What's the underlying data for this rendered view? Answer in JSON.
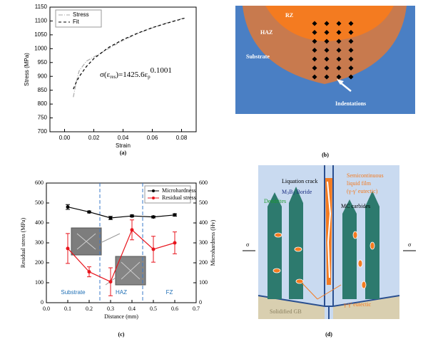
{
  "chart_data": [
    {
      "type": "line",
      "x": [
        0.006,
        0.008,
        0.01,
        0.015,
        0.02,
        0.03,
        0.04,
        0.05,
        0.06,
        0.07,
        0.08,
        0.082
      ],
      "series": [
        {
          "name": "Stress",
          "color": "#aaaaaa",
          "dash": "6 2 1 2",
          "values": [
            825,
            880,
            920,
            955,
            970,
            1000,
            1030,
            1055,
            1075,
            1093,
            1108,
            1112
          ]
        },
        {
          "name": "Fit",
          "color": "#000000",
          "dash": "4 3",
          "values": [
            854,
            879,
            899,
            936,
            964,
            1004,
            1033,
            1056,
            1076,
            1092,
            1107,
            1110
          ]
        }
      ],
      "x_label": "Strain",
      "y_label": "Stress (MPa)",
      "xlim": [
        -0.01,
        0.09
      ],
      "xticks": [
        {
          "value": 0,
          "label": "0.00"
        },
        {
          "value": 0.02,
          "label": "0.02"
        },
        {
          "value": 0.04,
          "label": "0.04"
        },
        {
          "value": 0.06,
          "label": "0.06"
        },
        {
          "value": 0.08,
          "label": "0.08"
        }
      ],
      "ylim": [
        700,
        1150
      ],
      "yticks": [
        700,
        750,
        800,
        850,
        900,
        950,
        1000,
        1050,
        1100,
        1150
      ],
      "equation": [
        "σ(ε",
        "res",
        ")=1425.6ε",
        "p",
        "0.1001"
      ],
      "legend": "upper left",
      "caption": "(a)"
    },
    {
      "type": "line",
      "x": [
        0.1,
        0.2,
        0.3,
        0.4,
        0.5,
        0.6
      ],
      "series": [
        {
          "name": "Microhardness",
          "color": "#000000",
          "axis": "y2",
          "values": [
            480,
            455,
            425,
            435,
            430,
            440
          ],
          "errors": [
            12,
            5,
            8,
            5,
            5,
            6
          ]
        },
        {
          "name": "Residual stress",
          "color": "#e8141c",
          "values": [
            272,
            155,
            105,
            365,
            268,
            300
          ],
          "errors": [
            75,
            25,
            70,
            50,
            65,
            55
          ]
        }
      ],
      "x_label": "Distance (mm)",
      "y_label": "Residual stress (MPa)",
      "y2_label": "Microhardness (Hv)",
      "xlim": [
        0,
        0.7
      ],
      "xticks": [
        {
          "value": 0,
          "label": "0.0"
        },
        0.1,
        0.2,
        0.3,
        0.4,
        0.5,
        0.6,
        0.7
      ],
      "ylim": [
        0,
        600
      ],
      "yticks": [
        0,
        100,
        200,
        300,
        400,
        500,
        600
      ],
      "y2lim": [
        0,
        600
      ],
      "y2ticks": [
        0,
        100,
        200,
        300,
        400,
        500,
        600
      ],
      "region_boundaries": [
        0.25,
        0.45
      ],
      "regions": [
        "Substrate",
        "HAZ",
        "FZ"
      ],
      "legend": "upper right",
      "caption": "(c)"
    }
  ],
  "diagram_b": {
    "labels": {
      "rz": "RZ",
      "haz": "HAZ",
      "substrate": "Substrate",
      "indentations": "Indentations"
    },
    "caption": "(b)"
  },
  "diagram_d": {
    "labels": {
      "crack": "Liquation crack",
      "boride": [
        "M",
        "3",
        "B",
        "2",
        " Boride"
      ],
      "carbides": "MC carbides",
      "dendrites": "Dendrites",
      "film": [
        "Semicontinuous",
        "liquid film",
        "(γ-γ' eutectic)"
      ],
      "gb": "Solidified GB",
      "eutectic": "γ-γ' eutectic",
      "sigma_left": "σ",
      "sigma_right": "σ"
    },
    "caption": "(d)"
  }
}
